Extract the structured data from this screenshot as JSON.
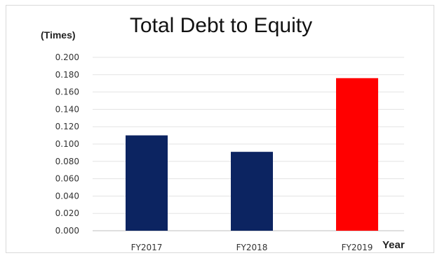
{
  "chart_data": {
    "type": "bar",
    "title": "Total Debt to Equity",
    "ylabel": "(Times)",
    "xlabel": "Year",
    "categories": [
      "FY2017",
      "FY2018",
      "FY2019"
    ],
    "values": [
      0.11,
      0.091,
      0.176
    ],
    "colors": [
      "#0c2461",
      "#0c2461",
      "#ff0000"
    ],
    "ylim": [
      0,
      0.2
    ],
    "yticks": [
      "0.000",
      "0.020",
      "0.040",
      "0.060",
      "0.080",
      "0.100",
      "0.120",
      "0.140",
      "0.160",
      "0.180",
      "0.200"
    ],
    "grid": true,
    "legend": "none"
  }
}
